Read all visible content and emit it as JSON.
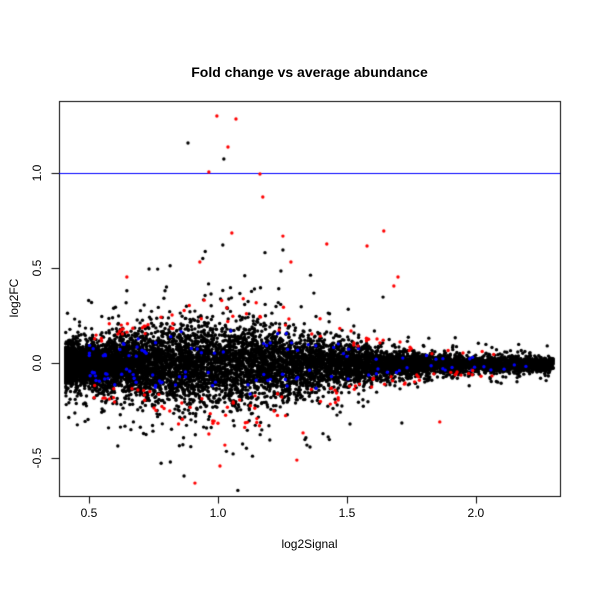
{
  "chart_data": {
    "type": "scatter",
    "title": "Fold change vs average abundance",
    "xlabel": "log2Signal",
    "ylabel": "log2FC",
    "x_ticks": [
      0.5,
      1.0,
      1.5,
      2.0
    ],
    "y_ticks": [
      -0.5,
      0.0,
      0.5,
      1.0
    ],
    "x_tick_labels": [
      "0.5",
      "1.0",
      "1.5",
      "2.0"
    ],
    "y_tick_labels": [
      "-0.5",
      "0.0",
      "0.5",
      "1.0"
    ],
    "x_range": [
      0.384,
      2.326
    ],
    "y_range": [
      -0.7,
      1.379
    ],
    "grid": false,
    "legend": null,
    "background_color": "#ffffff",
    "axis_color": "#000000",
    "reference_line": {
      "y": 1.0,
      "color": "#0000ff",
      "width": 1
    },
    "point_radius_px": 1.7,
    "cloud": {
      "description": "MA-plot: dense horizontal cloud of probes centered near log2FC 0, widest near log2Signal 1.0, tapering toward 2.3; red points ring the fringe, blue points sit near the core edges",
      "seed": 1337,
      "sd_base": 0.018,
      "sd_peak": 0.085,
      "sd_center": 1.02,
      "sd_width": 0.38,
      "series": [
        {
          "name": "probes-all",
          "color": "#000000",
          "n": 10000,
          "x_min": 0.41,
          "x_span": 1.89,
          "x_pow": 1.6,
          "y_model": "normal",
          "tail_frac": 0.12,
          "tail_mult": 2.2,
          "y_bias": -0.008
        },
        {
          "name": "probes-blue-flagged",
          "color": "#0000ff",
          "n": 115,
          "x_min": 0.5,
          "x_span": 1.7,
          "x_pow": 1.5,
          "y_model": "band",
          "band": [
            0.45,
            1.85
          ],
          "y_bias": 0
        },
        {
          "name": "probes-red-flagged",
          "color": "#ff0000",
          "n": 150,
          "x_min": 0.52,
          "x_span": 1.55,
          "x_pow": 1.4,
          "y_model": "band",
          "band": [
            1.75,
            3.4
          ],
          "y_bias": 0
        }
      ]
    },
    "outliers": {
      "red": [
        [
          0.996,
          1.3
        ],
        [
          1.07,
          1.284
        ],
        [
          1.039,
          1.137
        ],
        [
          0.965,
          1.005
        ],
        [
          1.163,
          0.995
        ],
        [
          1.174,
          0.874
        ],
        [
          1.643,
          0.695
        ],
        [
          1.054,
          0.684
        ],
        [
          1.252,
          0.668
        ],
        [
          1.422,
          0.626
        ],
        [
          1.578,
          0.616
        ],
        [
          0.93,
          0.532
        ],
        [
          1.283,
          0.532
        ],
        [
          0.647,
          0.453
        ],
        [
          1.698,
          0.453
        ],
        [
          1.682,
          0.405
        ],
        [
          0.911,
          -0.632
        ],
        [
          1.008,
          -0.542
        ],
        [
          1.306,
          -0.511
        ],
        [
          1.33,
          -0.368
        ],
        [
          1.027,
          -0.432
        ],
        [
          0.965,
          -0.374
        ],
        [
          1.86,
          -0.31
        ]
      ],
      "black": [
        [
          0.884,
          1.158
        ],
        [
          1.023,
          1.074
        ],
        [
          1.372,
          0.368
        ],
        [
          1.64,
          0.347
        ],
        [
          0.733,
          0.495
        ],
        [
          1.019,
          0.621
        ],
        [
          1.252,
          0.595
        ],
        [
          1.345,
          -0.432
        ],
        [
          1.512,
          -0.321
        ],
        [
          1.713,
          -0.316
        ],
        [
          0.612,
          -0.437
        ],
        [
          0.647,
          0.38
        ]
      ]
    }
  }
}
